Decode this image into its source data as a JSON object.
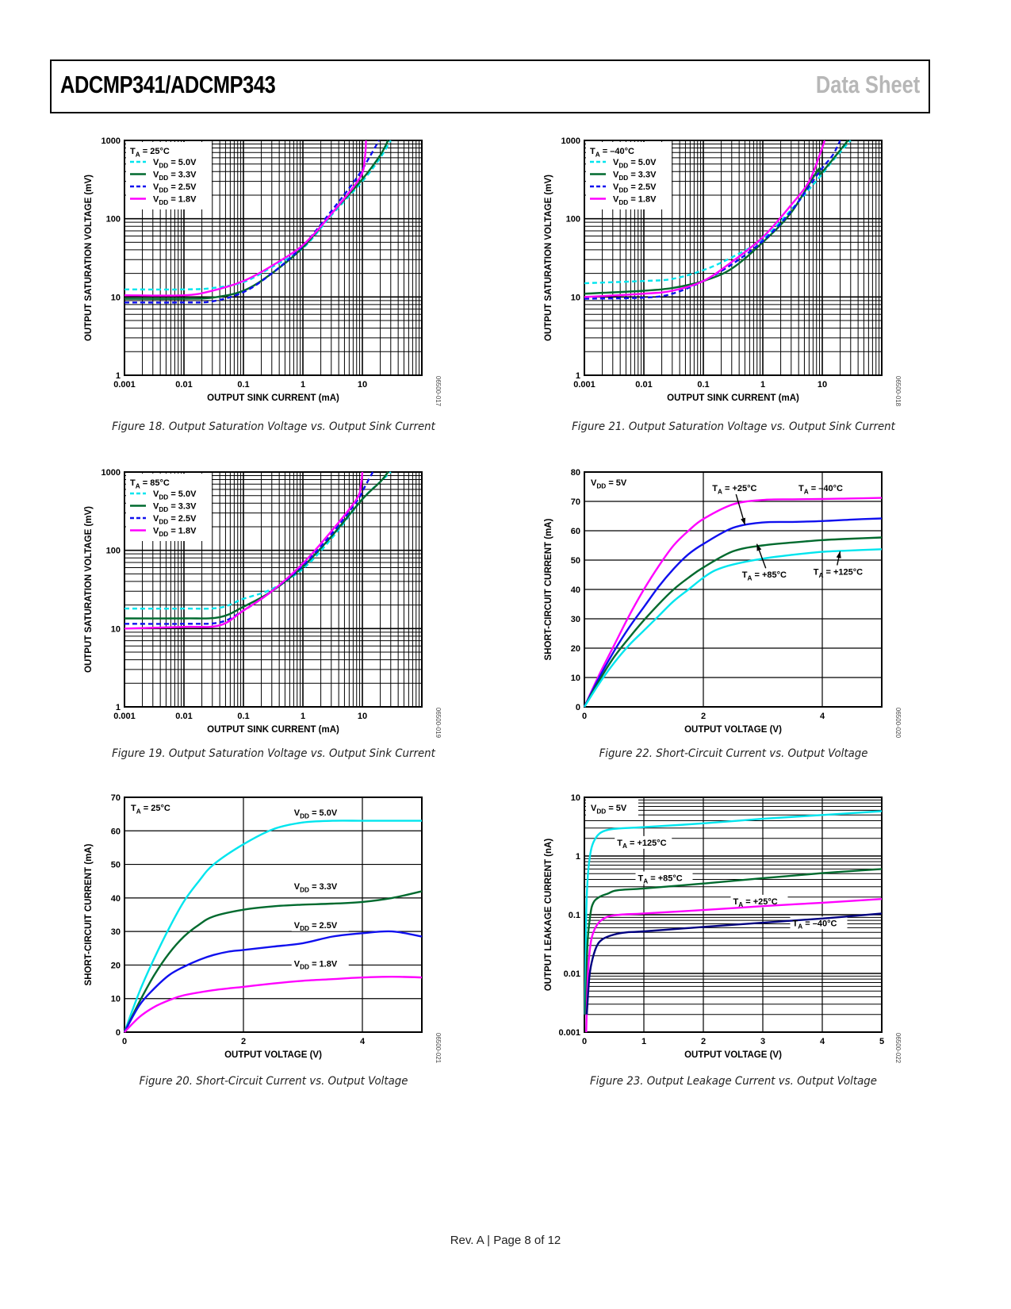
{
  "header": {
    "title": "ADCMP341/ADCMP343",
    "doc_type": "Data Sheet"
  },
  "footer": {
    "text": "Rev. A | Page 8 of 12"
  },
  "chart_data": [
    {
      "id": "fig18",
      "figure_id": "06500-017",
      "caption": "Figure 18. Output Saturation Voltage vs. Output Sink Current",
      "type": "line",
      "xscale": "log",
      "yscale": "log",
      "xlabel": "OUTPUT SINK CURRENT (mA)",
      "ylabel": "OUTPUT SATURATION VOLTAGE (mV)",
      "xlim": [
        0.001,
        100
      ],
      "ylim": [
        1,
        1000
      ],
      "xticks": [
        "0.001",
        "0.01",
        "0.1",
        "1",
        "10"
      ],
      "yticks": [
        "1",
        "10",
        "100",
        "1000"
      ],
      "grid": true,
      "legend_position": "top-left",
      "legend_title": "TA = 25°C",
      "series": [
        {
          "name": "VDD = 5.0V",
          "color": "#00e5ee",
          "dash": "dashed",
          "x": [
            0.001,
            0.01,
            0.03,
            0.1,
            0.3,
            1,
            3,
            10,
            20,
            30
          ],
          "y": [
            12.5,
            12.5,
            13,
            15.5,
            24,
            42,
            110,
            300,
            600,
            1000
          ]
        },
        {
          "name": "VDD = 3.3V",
          "color": "#006a2e",
          "dash": "solid",
          "x": [
            0.001,
            0.01,
            0.03,
            0.1,
            0.3,
            1,
            3,
            10,
            20,
            27
          ],
          "y": [
            9.5,
            9.5,
            9.8,
            12,
            20,
            43,
            115,
            320,
            650,
            1000
          ]
        },
        {
          "name": "VDD = 2.5V",
          "color": "#1010ee",
          "dash": "dashed",
          "x": [
            0.001,
            0.01,
            0.03,
            0.1,
            0.3,
            1,
            3,
            8,
            13,
            19
          ],
          "y": [
            8.5,
            8.5,
            8.8,
            11.5,
            20,
            45,
            125,
            330,
            600,
            1000
          ]
        },
        {
          "name": "VDD = 1.8V",
          "color": "#ff00ff",
          "dash": "solid",
          "x": [
            0.001,
            0.01,
            0.03,
            0.1,
            0.3,
            1,
            3,
            9,
            11,
            11.5
          ],
          "y": [
            10.5,
            10.5,
            12,
            16,
            25,
            46,
            115,
            330,
            600,
            1000
          ]
        }
      ]
    },
    {
      "id": "fig19",
      "figure_id": "06500-019",
      "caption": "Figure 19. Output Saturation Voltage vs. Output Sink Current",
      "type": "line",
      "xscale": "log",
      "yscale": "log",
      "xlabel": "OUTPUT SINK CURRENT (mA)",
      "ylabel": "OUTPUT SATURATION VOLTAGE (mV)",
      "xlim": [
        0.001,
        100
      ],
      "ylim": [
        1,
        1000
      ],
      "xticks": [
        "0.001",
        "0.01",
        "0.1",
        "1",
        "10"
      ],
      "yticks": [
        "1",
        "10",
        "100",
        "1000"
      ],
      "grid": true,
      "legend_position": "top-left",
      "legend_title": "TA = 85°C",
      "series": [
        {
          "name": "VDD = 5.0V",
          "color": "#00e5ee",
          "dash": "dashed",
          "x": [
            0.001,
            0.01,
            0.04,
            0.1,
            0.3,
            1,
            3,
            10,
            20,
            30
          ],
          "y": [
            18,
            18,
            18.5,
            24,
            32,
            58,
            140,
            450,
            750,
            1000
          ]
        },
        {
          "name": "VDD = 3.3V",
          "color": "#006a2e",
          "dash": "solid",
          "x": [
            0.001,
            0.01,
            0.04,
            0.1,
            0.3,
            1,
            3,
            10,
            20,
            27
          ],
          "y": [
            13.5,
            13.5,
            14,
            19,
            30,
            62,
            150,
            450,
            750,
            1000
          ]
        },
        {
          "name": "VDD = 2.5V",
          "color": "#1010ee",
          "dash": "dashed",
          "x": [
            0.001,
            0.01,
            0.04,
            0.1,
            0.3,
            1,
            3,
            8,
            11,
            15
          ],
          "y": [
            11.5,
            11.5,
            12,
            17,
            30,
            64,
            160,
            420,
            650,
            1000
          ]
        },
        {
          "name": "VDD = 1.8V",
          "color": "#ff00ff",
          "dash": "solid",
          "x": [
            0.001,
            0.01,
            0.04,
            0.1,
            0.3,
            1,
            3,
            8,
            9.5,
            10
          ],
          "y": [
            10,
            10.5,
            11,
            17,
            30,
            68,
            175,
            450,
            700,
            1000
          ]
        }
      ]
    },
    {
      "id": "fig20",
      "figure_id": "06500-021",
      "caption": "Figure 20. Short-Circuit Current vs. Output Voltage",
      "type": "line",
      "xlabel": "OUTPUT VOLTAGE (V)",
      "ylabel": "SHORT-CIRCUIT CURRENT (mA)",
      "xlim": [
        0,
        5
      ],
      "ylim": [
        0,
        70
      ],
      "xticks": [
        "0",
        "2",
        "4"
      ],
      "yticks": [
        "0",
        "10",
        "20",
        "30",
        "40",
        "50",
        "60",
        "70"
      ],
      "grid": true,
      "annotation": "TA = 25°C",
      "series": [
        {
          "name": "VDD = 5.0V",
          "color": "#00e5ee",
          "x": [
            0,
            0.25,
            0.5,
            0.75,
            1,
            1.25,
            1.5,
            2,
            2.5,
            3,
            3.5,
            4,
            4.5,
            5
          ],
          "y": [
            0,
            12,
            22,
            31,
            39,
            45,
            50,
            56,
            60.5,
            62.5,
            63,
            63,
            63,
            63
          ]
        },
        {
          "name": "VDD = 3.3V",
          "color": "#006a2e",
          "x": [
            0,
            0.25,
            0.5,
            0.75,
            1,
            1.25,
            1.5,
            2,
            2.5,
            3,
            3.5,
            4,
            4.5,
            5
          ],
          "y": [
            0,
            9,
            17,
            23.5,
            28.5,
            32,
            34.5,
            36.5,
            37.5,
            38,
            38.3,
            38.8,
            40,
            42
          ]
        },
        {
          "name": "VDD = 2.5V",
          "color": "#1010ee",
          "x": [
            0,
            0.25,
            0.5,
            0.75,
            1,
            1.25,
            1.5,
            1.75,
            2,
            2.5,
            3,
            3.5,
            4,
            4.5,
            5
          ],
          "y": [
            0,
            8,
            13,
            17,
            19.5,
            21.5,
            23,
            24,
            24.5,
            25.5,
            26.5,
            28.5,
            29.5,
            30,
            28.5
          ]
        },
        {
          "name": "VDD = 1.8V",
          "color": "#ff00ff",
          "x": [
            0,
            0.25,
            0.5,
            0.75,
            1,
            1.5,
            2,
            2.5,
            3,
            3.5,
            4,
            4.5,
            5
          ],
          "y": [
            0,
            4.5,
            7.5,
            9.5,
            11,
            12.5,
            13.5,
            14.5,
            15.3,
            15.8,
            16.3,
            16.5,
            16.3
          ]
        }
      ],
      "labels": [
        {
          "text": "VDD = 5.0V",
          "x": 2.85,
          "y": 65
        },
        {
          "text": "VDD = 3.3V",
          "x": 2.85,
          "y": 43
        },
        {
          "text": "VDD = 2.5V",
          "x": 2.85,
          "y": 31.5
        },
        {
          "text": "VDD = 1.8V",
          "x": 2.85,
          "y": 20
        }
      ]
    },
    {
      "id": "fig21",
      "figure_id": "06500-018",
      "caption": "Figure 21. Output Saturation Voltage vs. Output Sink Current",
      "type": "line",
      "xscale": "log",
      "yscale": "log",
      "xlabel": "OUTPUT SINK CURRENT (mA)",
      "ylabel": "OUTPUT SATURATION VOLTAGE (mV)",
      "xlim": [
        0.001,
        100
      ],
      "ylim": [
        1,
        1000
      ],
      "xticks": [
        "0.001",
        "0.01",
        "0.1",
        "1",
        "10"
      ],
      "yticks": [
        "1",
        "10",
        "100",
        "1000"
      ],
      "grid": true,
      "legend_position": "top-left",
      "legend_title": "TA = –40°C",
      "series": [
        {
          "name": "VDD = 5.0V",
          "color": "#00e5ee",
          "dash": "dashed",
          "x": [
            0.001,
            0.01,
            0.03,
            0.1,
            0.3,
            1,
            3,
            9,
            15,
            30
          ],
          "y": [
            15,
            16,
            17,
            22,
            32,
            55,
            130,
            340,
            550,
            1000
          ]
        },
        {
          "name": "VDD = 3.3V",
          "color": "#006a2e",
          "dash": "solid",
          "x": [
            0.001,
            0.01,
            0.03,
            0.1,
            0.3,
            1,
            3,
            8.5,
            9.5,
            27
          ],
          "y": [
            11,
            12,
            13,
            16,
            23,
            50,
            120,
            420,
            380,
            1000
          ]
        },
        {
          "name": "VDD = 2.5V",
          "color": "#1010ee",
          "dash": "dashed",
          "x": [
            0.001,
            0.01,
            0.03,
            0.1,
            0.3,
            1,
            3,
            9,
            15,
            20
          ],
          "y": [
            9.5,
            9.8,
            11,
            16,
            26,
            52,
            125,
            400,
            650,
            1000
          ]
        },
        {
          "name": "VDD = 1.8V",
          "color": "#ff00ff",
          "dash": "solid",
          "x": [
            0.001,
            0.01,
            0.03,
            0.1,
            0.3,
            1,
            3,
            6,
            9,
            11
          ],
          "y": [
            10,
            11,
            12,
            16,
            28,
            58,
            150,
            300,
            650,
            1000
          ]
        }
      ]
    },
    {
      "id": "fig22",
      "figure_id": "06500-020",
      "caption": "Figure 22. Short-Circuit Current vs. Output Voltage",
      "type": "line",
      "xlabel": "OUTPUT VOLTAGE (V)",
      "ylabel": "SHORT-CIRCUIT CURRENT (mA)",
      "xlim": [
        0,
        5
      ],
      "ylim": [
        0,
        80
      ],
      "xticks": [
        "0",
        "2",
        "4"
      ],
      "yticks": [
        "0",
        "10",
        "20",
        "30",
        "40",
        "50",
        "60",
        "70",
        "80"
      ],
      "grid": true,
      "annotation": "VDD = 5V",
      "series": [
        {
          "name": "TA = –40°C",
          "color": "#ff00ff",
          "x": [
            0,
            0.25,
            0.5,
            0.75,
            1,
            1.25,
            1.5,
            1.75,
            2,
            2.5,
            3,
            3.5,
            4,
            4.5,
            5
          ],
          "y": [
            0,
            11,
            21,
            31,
            40,
            48,
            55,
            60,
            64,
            69,
            70.5,
            70.7,
            70.8,
            71,
            71.2
          ]
        },
        {
          "name": "TA = +25°C",
          "color": "#1010ee",
          "x": [
            0,
            0.25,
            0.5,
            0.75,
            1,
            1.25,
            1.5,
            1.75,
            2,
            2.5,
            3,
            3.5,
            4,
            4.5,
            5
          ],
          "y": [
            0,
            10,
            19,
            27,
            34,
            41,
            47,
            52,
            55.5,
            61,
            62.8,
            63,
            63.3,
            63.8,
            64.2
          ]
        },
        {
          "name": "TA = +85°C",
          "color": "#006a2e",
          "x": [
            0,
            0.25,
            0.5,
            0.75,
            1,
            1.25,
            1.5,
            1.75,
            2,
            2.5,
            3,
            3.5,
            4,
            4.5,
            5
          ],
          "y": [
            0,
            9,
            17,
            23.5,
            29.5,
            35,
            40,
            44,
            47.5,
            53,
            55,
            56,
            56.8,
            57.3,
            57.7
          ]
        },
        {
          "name": "TA = +125°C",
          "color": "#00e5ee",
          "x": [
            0,
            0.25,
            0.5,
            0.75,
            1,
            1.25,
            1.5,
            1.75,
            2,
            2.2,
            2.5,
            3,
            3.5,
            4,
            4.5,
            5
          ],
          "y": [
            0,
            8,
            15,
            21,
            26,
            31,
            36,
            40,
            44,
            46.5,
            48.5,
            50.5,
            51.8,
            52.8,
            53.3,
            53.7
          ]
        }
      ],
      "labels": [
        {
          "text": "TA = +25°C",
          "x": 2.15,
          "y": 73.5,
          "arrow_to": [
            2.7,
            62
          ]
        },
        {
          "text": "TA = –40°C",
          "x": 3.6,
          "y": 73.5
        },
        {
          "text": "TA = +85°C",
          "x": 2.65,
          "y": 44,
          "arrow_to": [
            2.9,
            55.5
          ]
        },
        {
          "text": "TA = +125°C",
          "x": 3.85,
          "y": 45,
          "arrow_to": [
            4.3,
            53
          ]
        }
      ]
    },
    {
      "id": "fig23",
      "figure_id": "06500-022",
      "caption": "Figure 23. Output Leakage Current vs. Output Voltage",
      "type": "line",
      "yscale": "log",
      "xlabel": "OUTPUT VOLTAGE (V)",
      "ylabel": "OUTPUT LEAKAGE CURRENT (nA)",
      "xlim": [
        0,
        5
      ],
      "ylim": [
        0.001,
        10
      ],
      "xticks": [
        "0",
        "1",
        "2",
        "3",
        "4",
        "5"
      ],
      "yticks": [
        "0.001",
        "0.01",
        "0.1",
        "1",
        "10"
      ],
      "grid": true,
      "annotation": "VDD = 5V",
      "series": [
        {
          "name": "TA = +125°C",
          "color": "#00e5ee",
          "x": [
            0.01,
            0.03,
            0.06,
            0.1,
            0.15,
            0.25,
            0.4,
            0.6,
            1,
            2,
            3,
            4,
            5
          ],
          "y": [
            0.002,
            0.1,
            0.5,
            1.1,
            1.7,
            2.4,
            2.8,
            2.95,
            3.1,
            3.6,
            4.3,
            5,
            5.8
          ]
        },
        {
          "name": "TA = +85°C",
          "color": "#006a2e",
          "x": [
            0.02,
            0.05,
            0.1,
            0.15,
            0.25,
            0.4,
            0.55,
            1,
            2,
            3,
            4,
            5
          ],
          "y": [
            0.002,
            0.03,
            0.1,
            0.16,
            0.2,
            0.23,
            0.26,
            0.28,
            0.34,
            0.42,
            0.51,
            0.6
          ]
        },
        {
          "name": "TA = +25°C",
          "color": "#ff00ff",
          "x": [
            0.03,
            0.06,
            0.1,
            0.15,
            0.25,
            0.4,
            0.6,
            1,
            2,
            3,
            4,
            5
          ],
          "y": [
            0.001,
            0.01,
            0.03,
            0.05,
            0.075,
            0.093,
            0.1,
            0.105,
            0.12,
            0.14,
            0.16,
            0.185
          ]
        },
        {
          "name": "TA = –40°C",
          "color": "#000080",
          "x": [
            0.04,
            0.08,
            0.12,
            0.2,
            0.3,
            0.5,
            0.7,
            1,
            2,
            3,
            4,
            5
          ],
          "y": [
            0.002,
            0.008,
            0.015,
            0.028,
            0.038,
            0.046,
            0.05,
            0.052,
            0.062,
            0.073,
            0.086,
            0.105
          ]
        }
      ],
      "labels": [
        {
          "text": "TA = +125°C",
          "x": 0.55,
          "y": 1.6
        },
        {
          "text": "TA = +85°C",
          "x": 0.9,
          "y": 0.4
        },
        {
          "text": "TA = +25°C",
          "x": 2.5,
          "y": 0.16
        },
        {
          "text": "TA = –40°C",
          "x": 3.5,
          "y": 0.068
        }
      ]
    }
  ]
}
